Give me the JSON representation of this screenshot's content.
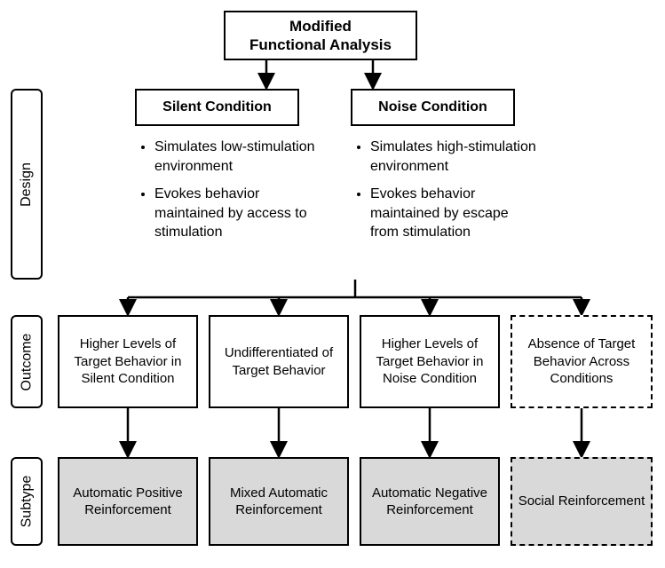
{
  "diagram": {
    "type": "flowchart",
    "background_color": "#ffffff",
    "border_color": "#000000",
    "text_color": "#000000",
    "subtype_fill": "#d9d9d9",
    "font_family": "Arial",
    "title": "Modified\nFunctional Analysis",
    "row_labels": {
      "design": "Design",
      "outcome": "Outcome",
      "subtype": "Subtype"
    },
    "conditions": {
      "silent": {
        "label": "Silent Condition",
        "bullets": [
          "Simulates low-stimulation environment",
          "Evokes behavior maintained by access to stimulation"
        ]
      },
      "noise": {
        "label": "Noise Condition",
        "bullets": [
          "Simulates high-stimulation environment",
          "Evokes behavior maintained by escape from stimulation"
        ]
      }
    },
    "outcomes": [
      "Higher Levels of Target Behavior in Silent Condition",
      "Undifferentiated of Target Behavior",
      "Higher Levels of Target Behavior in Noise Condition",
      "Absence of Target Behavior Across Conditions"
    ],
    "subtypes": [
      "Automatic Positive Reinforcement",
      "Mixed Automatic Reinforcement",
      "Automatic Negative Reinforcement",
      "Social Reinforcement"
    ],
    "dashed_columns": [
      3
    ],
    "font_sizes": {
      "title": 17,
      "condition": 16,
      "bullets": 16,
      "outcome": 15,
      "subtype": 15,
      "row_label": 16
    }
  }
}
